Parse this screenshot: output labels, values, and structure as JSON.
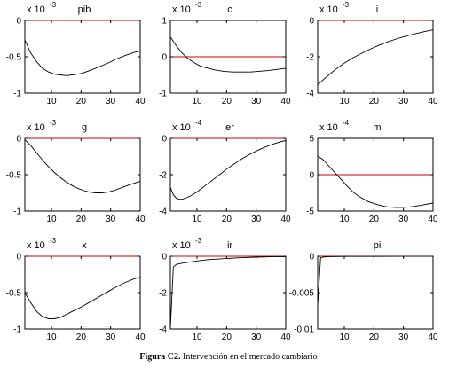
{
  "caption": {
    "label": "Figura C2.",
    "text": "Intervención en el mercado cambiario"
  },
  "colors": {
    "zero_line": "#cc0000",
    "series": "#000000",
    "axes": "#000000"
  },
  "chart_data": [
    {
      "type": "line",
      "title": "pib",
      "exponent_label": "x 10",
      "exponent": "-3",
      "xlim": [
        1,
        40
      ],
      "ylim": [
        -1,
        0
      ],
      "xticks": [
        10,
        20,
        30,
        40
      ],
      "yticks": [
        0,
        -0.5,
        -1
      ],
      "ytick_labels": [
        "0",
        "-0.5",
        "-1"
      ],
      "zero_line": 0,
      "series": [
        {
          "x": [
            1,
            3,
            5,
            7,
            9,
            11,
            13,
            15,
            17,
            20,
            23,
            26,
            29,
            32,
            35,
            38,
            40
          ],
          "y": [
            -0.27,
            -0.45,
            -0.57,
            -0.66,
            -0.71,
            -0.74,
            -0.75,
            -0.76,
            -0.75,
            -0.73,
            -0.69,
            -0.64,
            -0.59,
            -0.53,
            -0.48,
            -0.44,
            -0.42
          ]
        }
      ]
    },
    {
      "type": "line",
      "title": "c",
      "exponent_label": "x 10",
      "exponent": "-3",
      "xlim": [
        1,
        40
      ],
      "ylim": [
        -1,
        1
      ],
      "xticks": [
        10,
        20,
        30,
        40
      ],
      "yticks": [
        1,
        0,
        -1
      ],
      "ytick_labels": [
        "1",
        "0",
        "-1"
      ],
      "zero_line": 0,
      "series": [
        {
          "x": [
            1,
            3,
            5,
            7,
            9,
            11,
            13,
            16,
            19,
            22,
            25,
            28,
            31,
            34,
            37,
            40
          ],
          "y": [
            0.55,
            0.3,
            0.1,
            -0.05,
            -0.16,
            -0.25,
            -0.3,
            -0.36,
            -0.4,
            -0.42,
            -0.42,
            -0.42,
            -0.4,
            -0.38,
            -0.35,
            -0.32
          ]
        }
      ]
    },
    {
      "type": "line",
      "title": "i",
      "exponent_label": "x 10",
      "exponent": "-3",
      "xlim": [
        1,
        40
      ],
      "ylim": [
        -4,
        0
      ],
      "xticks": [
        10,
        20,
        30,
        40
      ],
      "yticks": [
        0,
        -2,
        -4
      ],
      "ytick_labels": [
        "0",
        "-2",
        "-4"
      ],
      "zero_line": 0,
      "series": [
        {
          "x": [
            1,
            4,
            7,
            10,
            13,
            16,
            19,
            22,
            25,
            28,
            31,
            34,
            37,
            40
          ],
          "y": [
            -3.55,
            -3.1,
            -2.7,
            -2.35,
            -2.05,
            -1.8,
            -1.56,
            -1.35,
            -1.16,
            -1.0,
            -0.86,
            -0.73,
            -0.62,
            -0.52
          ]
        }
      ]
    },
    {
      "type": "line",
      "title": "g",
      "exponent_label": "x 10",
      "exponent": "-3",
      "xlim": [
        1,
        40
      ],
      "ylim": [
        -1,
        0
      ],
      "xticks": [
        10,
        20,
        30,
        40
      ],
      "yticks": [
        0,
        -0.5,
        -1
      ],
      "ytick_labels": [
        "0",
        "-0.5",
        "-1"
      ],
      "zero_line": 0,
      "series": [
        {
          "x": [
            1,
            3,
            5,
            7,
            9,
            11,
            13,
            15,
            17,
            19,
            21,
            23,
            25,
            27,
            29,
            31,
            33,
            35,
            37,
            40
          ],
          "y": [
            -0.02,
            -0.1,
            -0.2,
            -0.3,
            -0.39,
            -0.47,
            -0.54,
            -0.6,
            -0.65,
            -0.69,
            -0.72,
            -0.74,
            -0.75,
            -0.75,
            -0.74,
            -0.72,
            -0.69,
            -0.66,
            -0.63,
            -0.59
          ]
        }
      ]
    },
    {
      "type": "line",
      "title": "er",
      "exponent_label": "x 10",
      "exponent": "-4",
      "xlim": [
        1,
        40
      ],
      "ylim": [
        -4,
        0
      ],
      "xticks": [
        10,
        20,
        30,
        40
      ],
      "yticks": [
        0,
        -2,
        -4
      ],
      "ytick_labels": [
        "0",
        "-2",
        "-4"
      ],
      "zero_line": 0,
      "series": [
        {
          "x": [
            1,
            2,
            3,
            4,
            5,
            6,
            8,
            10,
            12,
            14,
            16,
            18,
            20,
            22,
            24,
            26,
            28,
            30,
            32,
            34,
            36,
            38,
            40
          ],
          "y": [
            -2.7,
            -3.1,
            -3.3,
            -3.35,
            -3.35,
            -3.3,
            -3.15,
            -2.95,
            -2.7,
            -2.45,
            -2.2,
            -1.95,
            -1.7,
            -1.47,
            -1.25,
            -1.05,
            -0.87,
            -0.7,
            -0.55,
            -0.42,
            -0.3,
            -0.2,
            -0.12
          ]
        }
      ]
    },
    {
      "type": "line",
      "title": "m",
      "exponent_label": "x 10",
      "exponent": "-4",
      "xlim": [
        1,
        40
      ],
      "ylim": [
        -5,
        5
      ],
      "xticks": [
        10,
        20,
        30,
        40
      ],
      "yticks": [
        5,
        0,
        -5
      ],
      "ytick_labels": [
        "5",
        "0",
        "-5"
      ],
      "zero_line": 0,
      "series": [
        {
          "x": [
            1,
            3,
            5,
            7,
            9,
            11,
            13,
            15,
            18,
            21,
            24,
            27,
            30,
            33,
            36,
            40
          ],
          "y": [
            2.6,
            2.0,
            1.1,
            0.2,
            -0.7,
            -1.6,
            -2.4,
            -3.0,
            -3.7,
            -4.1,
            -4.4,
            -4.5,
            -4.5,
            -4.4,
            -4.2,
            -3.9
          ]
        }
      ]
    },
    {
      "type": "line",
      "title": "x",
      "exponent_label": "x 10",
      "exponent": "-3",
      "xlim": [
        1,
        40
      ],
      "ylim": [
        -1,
        0
      ],
      "xticks": [
        10,
        20,
        30,
        40
      ],
      "yticks": [
        0,
        -0.5,
        -1
      ],
      "ytick_labels": [
        "0",
        "-0.5",
        "-1"
      ],
      "zero_line": 0,
      "series": [
        {
          "x": [
            1,
            3,
            5,
            7,
            9,
            11,
            13,
            15,
            17,
            20,
            23,
            26,
            29,
            32,
            35,
            38,
            40
          ],
          "y": [
            -0.5,
            -0.64,
            -0.76,
            -0.83,
            -0.86,
            -0.86,
            -0.84,
            -0.8,
            -0.76,
            -0.7,
            -0.63,
            -0.56,
            -0.49,
            -0.42,
            -0.36,
            -0.31,
            -0.29
          ]
        }
      ]
    },
    {
      "type": "line",
      "title": "ir",
      "exponent_label": "x 10",
      "exponent": "-3",
      "xlim": [
        1,
        40
      ],
      "ylim": [
        -4,
        0
      ],
      "xticks": [
        10,
        20,
        30,
        40
      ],
      "yticks": [
        0,
        -2,
        -4
      ],
      "ytick_labels": [
        "0",
        "-2",
        "-4"
      ],
      "zero_line": 0,
      "series": [
        {
          "x": [
            1,
            2,
            3,
            5,
            7,
            10,
            13,
            16,
            20,
            25,
            30,
            35,
            40
          ],
          "y": [
            -4.0,
            -0.6,
            -0.45,
            -0.38,
            -0.33,
            -0.26,
            -0.2,
            -0.16,
            -0.12,
            -0.08,
            -0.05,
            -0.03,
            -0.02
          ]
        }
      ]
    },
    {
      "type": "line",
      "title": "pi",
      "exponent_label": "",
      "exponent": "",
      "xlim": [
        1,
        40
      ],
      "ylim": [
        -0.01,
        0
      ],
      "xticks": [
        10,
        20,
        30,
        40
      ],
      "yticks": [
        0,
        -0.005,
        -0.01
      ],
      "ytick_labels": [
        "0",
        "-0.005",
        "-0.01"
      ],
      "zero_line": 0,
      "series": [
        {
          "x": [
            1,
            2,
            3,
            5,
            10,
            20,
            30,
            40
          ],
          "y": [
            -0.0068,
            -0.0002,
            -0.0001,
            -5e-05,
            -3e-05,
            -2e-05,
            -1e-05,
            -1e-05
          ]
        }
      ]
    }
  ]
}
